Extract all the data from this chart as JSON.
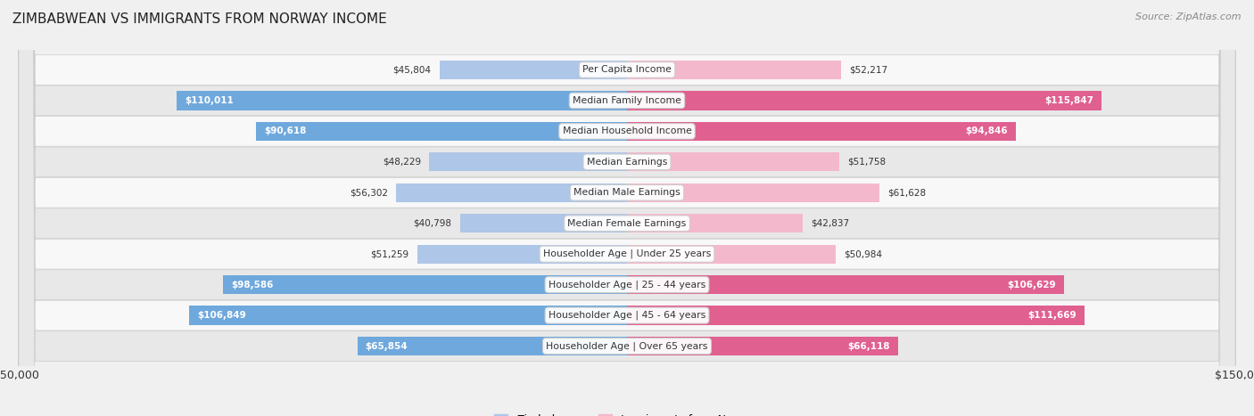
{
  "title": "ZIMBABWEAN VS IMMIGRANTS FROM NORWAY INCOME",
  "source": "Source: ZipAtlas.com",
  "categories": [
    "Per Capita Income",
    "Median Family Income",
    "Median Household Income",
    "Median Earnings",
    "Median Male Earnings",
    "Median Female Earnings",
    "Householder Age | Under 25 years",
    "Householder Age | 25 - 44 years",
    "Householder Age | 45 - 64 years",
    "Householder Age | Over 65 years"
  ],
  "zimbabwean_values": [
    45804,
    110011,
    90618,
    48229,
    56302,
    40798,
    51259,
    98586,
    106849,
    65854
  ],
  "norway_values": [
    52217,
    115847,
    94846,
    51758,
    61628,
    42837,
    50984,
    106629,
    111669,
    66118
  ],
  "zimbabwean_labels": [
    "$45,804",
    "$110,011",
    "$90,618",
    "$48,229",
    "$56,302",
    "$40,798",
    "$51,259",
    "$98,586",
    "$106,849",
    "$65,854"
  ],
  "norway_labels": [
    "$52,217",
    "$115,847",
    "$94,846",
    "$51,758",
    "$61,628",
    "$42,837",
    "$50,984",
    "$106,629",
    "$111,669",
    "$66,118"
  ],
  "zimbabwean_color_light": "#aec6e8",
  "zimbabwean_color_dark": "#6fa8dc",
  "norway_color_light": "#f4b8cc",
  "norway_color_dark": "#e06090",
  "x_max": 150000,
  "legend_zimbabwean": "Zimbabwean",
  "legend_norway": "Immigrants from Norway",
  "background_color": "#f0f0f0",
  "row_bg_odd": "#f8f8f8",
  "row_bg_even": "#e8e8e8",
  "bar_height": 0.62,
  "threshold_for_dark": 65000
}
